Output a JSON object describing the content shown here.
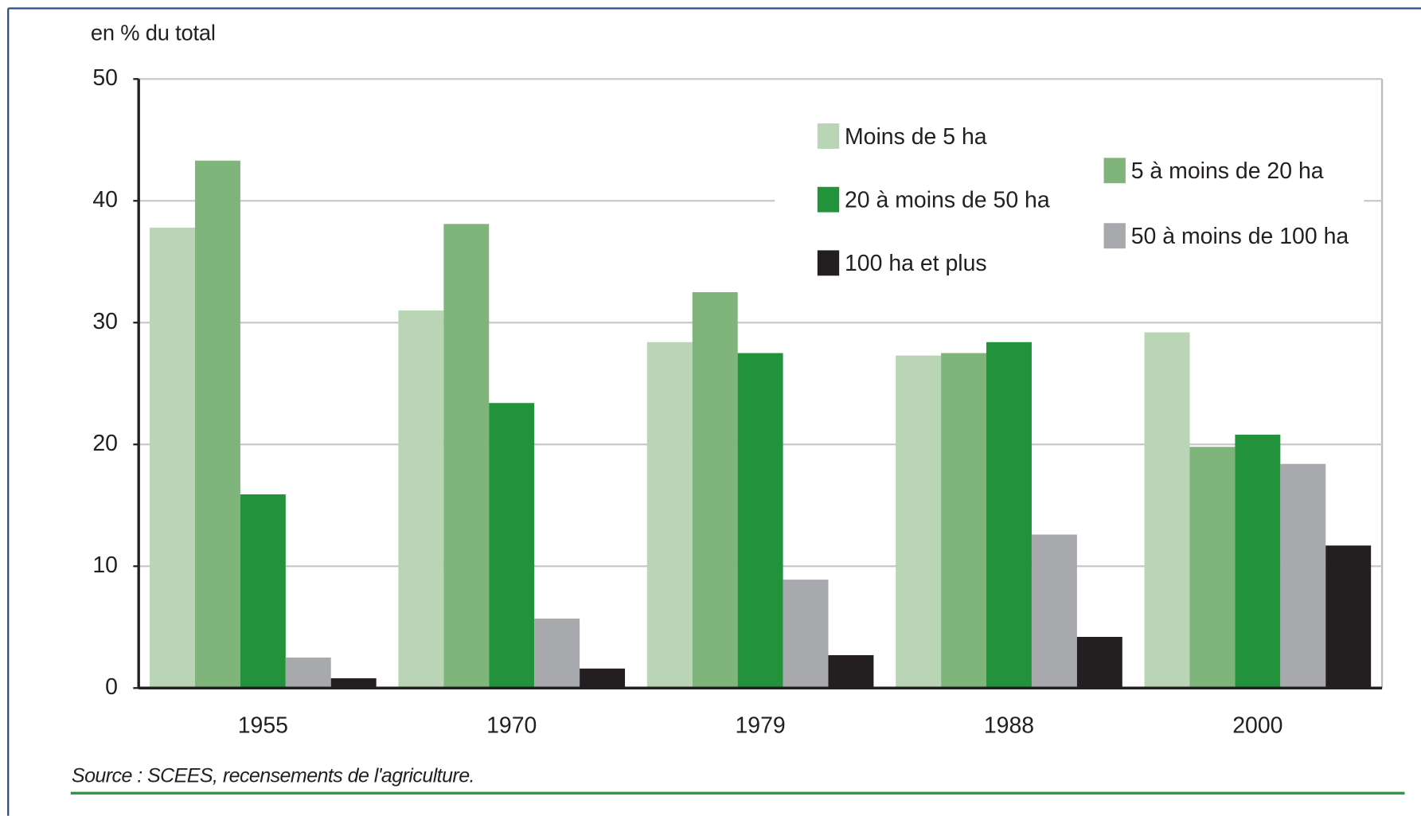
{
  "chart_data": {
    "type": "bar",
    "y_axis_label": "en % du total",
    "source": "Source : SCEES, recensements de l'agriculture.",
    "categories": [
      "1955",
      "1970",
      "1979",
      "1988",
      "2000"
    ],
    "series": [
      {
        "name": "Moins de 5 ha",
        "color": "#b9d5b5",
        "values": [
          37.8,
          31.0,
          28.4,
          27.3,
          29.2
        ]
      },
      {
        "name": "5 à moins de 20 ha",
        "color": "#7fb47b",
        "values": [
          43.3,
          38.1,
          32.5,
          27.5,
          19.8
        ]
      },
      {
        "name": "20 à moins de 50 ha",
        "color": "#22923b",
        "values": [
          15.9,
          23.4,
          27.5,
          28.4,
          20.8
        ]
      },
      {
        "name": "50 à moins de 100 ha",
        "color": "#a8a9ad",
        "values": [
          2.5,
          5.7,
          8.9,
          12.6,
          18.4
        ]
      },
      {
        "name": "100 ha et plus",
        "color": "#231f20",
        "values": [
          0.8,
          1.6,
          2.7,
          4.2,
          11.7
        ]
      }
    ],
    "ylim": [
      0,
      50
    ],
    "yticks": [
      0,
      10,
      20,
      30,
      40,
      50
    ],
    "grid": true
  }
}
